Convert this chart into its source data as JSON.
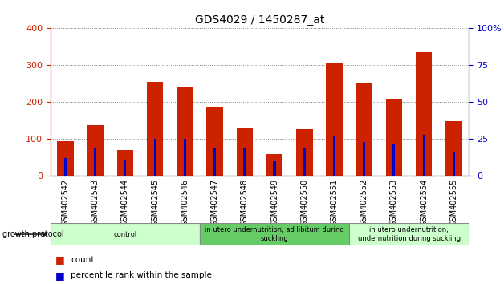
{
  "title": "GDS4029 / 1450287_at",
  "categories": [
    "GSM402542",
    "GSM402543",
    "GSM402544",
    "GSM402545",
    "GSM402546",
    "GSM402547",
    "GSM402548",
    "GSM402549",
    "GSM402550",
    "GSM402551",
    "GSM402552",
    "GSM402553",
    "GSM402554",
    "GSM402555"
  ],
  "count_values": [
    95,
    138,
    70,
    255,
    242,
    188,
    132,
    60,
    127,
    308,
    253,
    208,
    335,
    148
  ],
  "percentile_values": [
    12,
    19,
    11,
    25,
    25,
    19,
    19,
    10,
    19,
    27,
    23,
    22,
    28,
    16
  ],
  "bar_color": "#cc2200",
  "percentile_color": "#0000cc",
  "bar_width": 0.55,
  "ylim_left": [
    0,
    400
  ],
  "ylim_right": [
    0,
    100
  ],
  "yticks_left": [
    0,
    100,
    200,
    300,
    400
  ],
  "yticks_right": [
    0,
    25,
    50,
    75,
    100
  ],
  "yticklabels_right": [
    "0",
    "25",
    "50",
    "75",
    "100%"
  ],
  "grid_linestyle": "dotted",
  "groups": [
    {
      "label": "control",
      "start": 0,
      "end": 4,
      "color": "#ccffcc"
    },
    {
      "label": "in utero undernutrition, ad libitum during\nsuckling",
      "start": 5,
      "end": 9,
      "color": "#66cc66"
    },
    {
      "label": "in utero undernutrition,\nundernutrition during suckling",
      "start": 10,
      "end": 13,
      "color": "#ccffcc"
    }
  ],
  "group_protocol_label": "growth protocol",
  "legend_count_label": "count",
  "legend_percentile_label": "percentile rank within the sample",
  "tick_label_bg": "#cccccc",
  "plot_bg": "#ffffff",
  "tick_label_fontsize": 7,
  "title_fontsize": 10,
  "left_axis_color": "#cc2200",
  "right_axis_color": "#0000cc"
}
